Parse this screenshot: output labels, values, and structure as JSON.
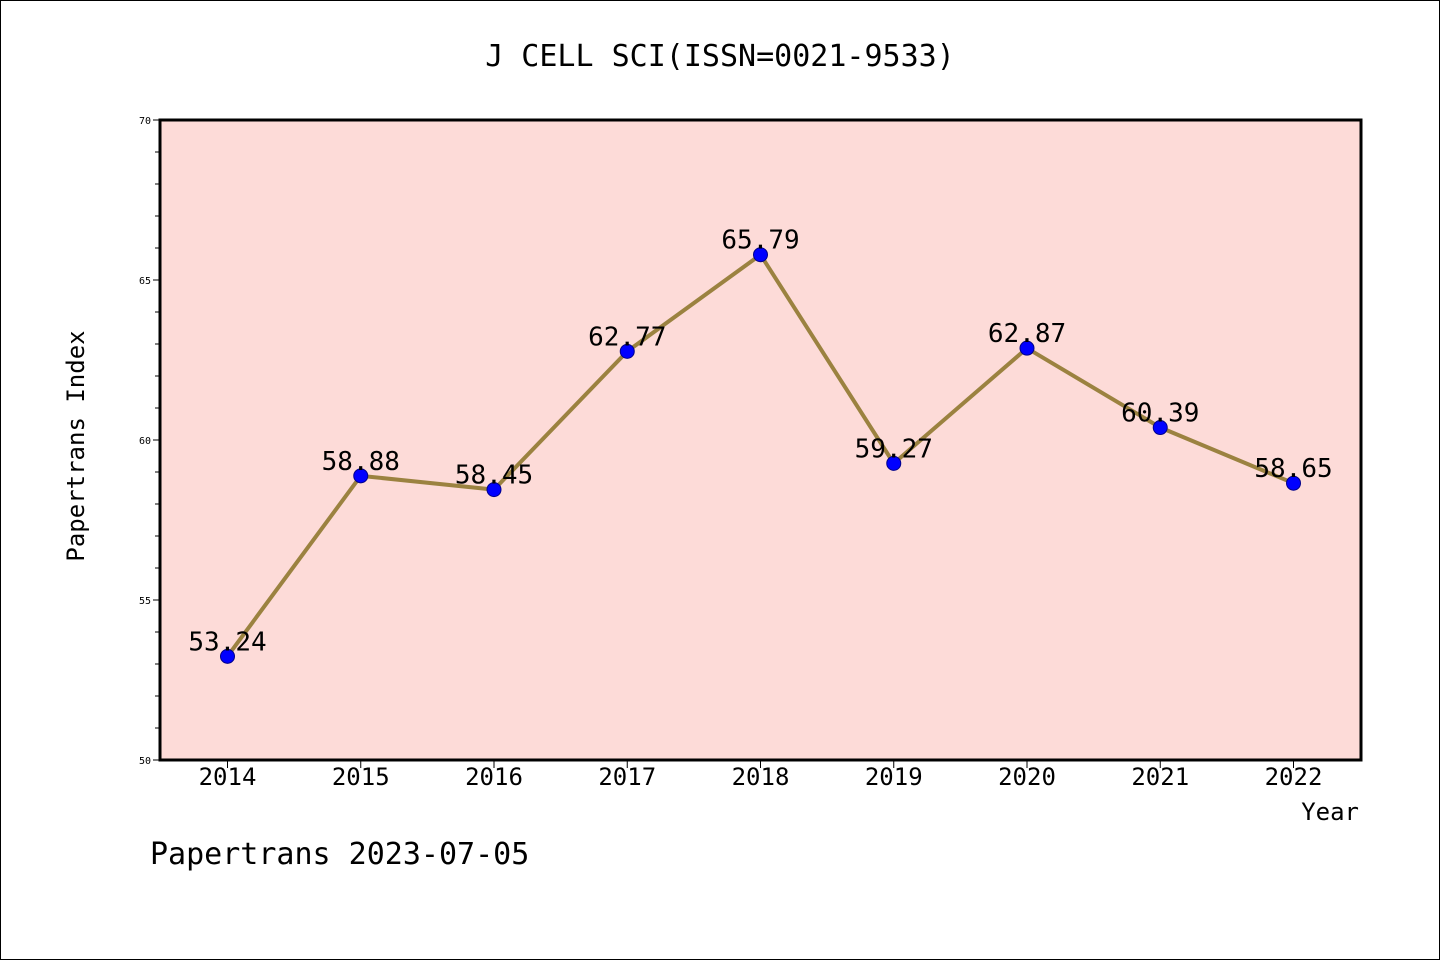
{
  "chart_data": {
    "type": "line",
    "title": "J CELL SCI(ISSN=0021-9533)",
    "xlabel": "Year",
    "ylabel": "Papertrans Index",
    "categories": [
      "2014",
      "2015",
      "2016",
      "2017",
      "2018",
      "2019",
      "2020",
      "2021",
      "2022"
    ],
    "series": [
      {
        "values": [
          53.24,
          58.88,
          58.45,
          62.77,
          65.79,
          59.27,
          62.87,
          60.39,
          58.65
        ]
      }
    ],
    "data_labels": [
      "53.24",
      "58.88",
      "58.45",
      "62.77",
      "65.79",
      "59.27",
      "62.87",
      "60.39",
      "58.65"
    ],
    "ylim": [
      50,
      70
    ],
    "yticks": [
      "50",
      "55",
      "60",
      "65",
      "70"
    ],
    "grid": false,
    "plot_background": "#fddbd8",
    "line_color": "#9b8240",
    "marker_color": "#0000ff"
  },
  "footer": "Papertrans 2023-07-05"
}
